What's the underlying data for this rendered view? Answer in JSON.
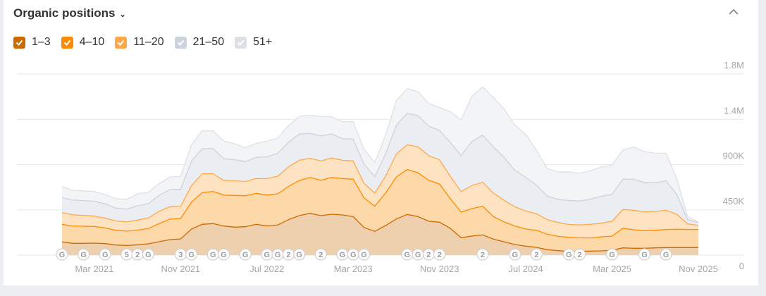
{
  "header": {
    "title": "Organic positions",
    "dropdown_icon": "chevron-down-icon",
    "collapse_icon": "chevron-up-icon"
  },
  "chart_data": {
    "type": "area",
    "stacked": true,
    "title": "Organic positions",
    "x": [
      "2020-12",
      "2021-01",
      "2021-02",
      "2021-03",
      "2021-04",
      "2021-05",
      "2021-06",
      "2021-07",
      "2021-08",
      "2021-09",
      "2021-10",
      "2021-11",
      "2021-12",
      "2022-01",
      "2022-02",
      "2022-03",
      "2022-04",
      "2022-05",
      "2022-06",
      "2022-07",
      "2022-08",
      "2022-09",
      "2022-10",
      "2022-11",
      "2022-12",
      "2023-01",
      "2023-02",
      "2023-03",
      "2023-04",
      "2023-05",
      "2023-06",
      "2023-07",
      "2023-08",
      "2023-09",
      "2023-10",
      "2023-11",
      "2023-12",
      "2024-01",
      "2024-02",
      "2024-03",
      "2024-04",
      "2024-05",
      "2024-06",
      "2024-07",
      "2024-08",
      "2024-09",
      "2024-10",
      "2024-11",
      "2024-12",
      "2025-01",
      "2025-02",
      "2025-03",
      "2025-04",
      "2025-05",
      "2025-06",
      "2025-07",
      "2025-08",
      "2025-09",
      "2025-10",
      "2025-11"
    ],
    "x_tick_labels": [
      "Mar 2021",
      "Nov 2021",
      "Jul 2022",
      "Mar 2023",
      "Nov 2023",
      "Jul 2024",
      "Mar 2025",
      "Nov 2025"
    ],
    "x_tick_dates": [
      "2021-03",
      "2021-11",
      "2022-07",
      "2023-03",
      "2023-11",
      "2024-07",
      "2025-03",
      "2025-11"
    ],
    "y_tick_labels": [
      "0",
      "450K",
      "900K",
      "1.4M",
      "1.8M"
    ],
    "y_tick_values": [
      0,
      450000,
      900000,
      1350000,
      1800000
    ],
    "ylim": [
      0,
      1800000
    ],
    "grid": true,
    "legend_position": "top-left",
    "series": [
      {
        "name": "1–3",
        "color": "#cc6a00",
        "fill": "#efd0ae",
        "checked": true,
        "values": [
          131000,
          117000,
          117000,
          119000,
          114000,
          100000,
          96000,
          103000,
          112000,
          133000,
          154000,
          161000,
          259000,
          306000,
          313000,
          289000,
          278000,
          282000,
          306000,
          289000,
          299000,
          352000,
          392000,
          415000,
          392000,
          406000,
          399000,
          383000,
          275000,
          236000,
          294000,
          359000,
          404000,
          383000,
          336000,
          327000,
          266000,
          173000,
          189000,
          201000,
          159000,
          131000,
          105000,
          89000,
          77000,
          54000,
          44000,
          37000,
          37000,
          40000,
          42000,
          49000,
          72000,
          68000,
          68000,
          72000,
          75000,
          75000,
          75000,
          75000
        ]
      },
      {
        "name": "4–10",
        "color": "#ff8c00",
        "fill": "#fdd8a8",
        "checked": true,
        "values": [
          175000,
          173000,
          170000,
          166000,
          156000,
          147000,
          142000,
          145000,
          152000,
          180000,
          203000,
          203000,
          268000,
          315000,
          320000,
          308000,
          315000,
          308000,
          308000,
          308000,
          310000,
          331000,
          350000,
          357000,
          352000,
          366000,
          362000,
          371000,
          294000,
          250000,
          322000,
          418000,
          446000,
          436000,
          408000,
          380000,
          296000,
          254000,
          273000,
          285000,
          224000,
          198000,
          184000,
          170000,
          170000,
          154000,
          142000,
          140000,
          135000,
          131000,
          140000,
          140000,
          194000,
          184000,
          175000,
          175000,
          180000,
          182000,
          180000,
          180000
        ]
      },
      {
        "name": "11–20",
        "color": "#ffa84a",
        "fill": "#fee3c3",
        "checked": true,
        "values": [
          117000,
          110000,
          107000,
          103000,
          98000,
          93000,
          91000,
          100000,
          105000,
          121000,
          124000,
          121000,
          163000,
          187000,
          175000,
          145000,
          145000,
          142000,
          147000,
          163000,
          175000,
          194000,
          201000,
          191000,
          191000,
          194000,
          182000,
          182000,
          145000,
          131000,
          168000,
          229000,
          247000,
          257000,
          245000,
          240000,
          222000,
          205000,
          229000,
          238000,
          233000,
          215000,
          191000,
          180000,
          163000,
          145000,
          138000,
          128000,
          128000,
          135000,
          135000,
          147000,
          187000,
          194000,
          187000,
          187000,
          191000,
          149000,
          56000,
          40000
        ]
      },
      {
        "name": "21–50",
        "color": "#cdd3dc",
        "fill": "#eaedf1",
        "checked": true,
        "values": [
          147000,
          147000,
          149000,
          147000,
          142000,
          128000,
          128000,
          142000,
          142000,
          159000,
          170000,
          170000,
          245000,
          250000,
          250000,
          217000,
          210000,
          198000,
          210000,
          217000,
          229000,
          245000,
          261000,
          247000,
          250000,
          238000,
          215000,
          217000,
          191000,
          163000,
          222000,
          287000,
          313000,
          310000,
          292000,
          292000,
          338000,
          357000,
          439000,
          469000,
          460000,
          427000,
          362000,
          334000,
          285000,
          233000,
          231000,
          238000,
          238000,
          250000,
          268000,
          268000,
          301000,
          310000,
          289000,
          285000,
          292000,
          198000,
          42000,
          28000
        ]
      },
      {
        "name": "51+",
        "color": "#dde1e7",
        "fill": "#f3f4f6",
        "checked": true,
        "values": [
          110000,
          98000,
          96000,
          98000,
          91000,
          93000,
          98000,
          119000,
          114000,
          117000,
          126000,
          128000,
          163000,
          177000,
          177000,
          175000,
          159000,
          138000,
          140000,
          156000,
          149000,
          163000,
          175000,
          180000,
          194000,
          170000,
          168000,
          173000,
          147000,
          140000,
          187000,
          243000,
          243000,
          238000,
          226000,
          229000,
          303000,
          355000,
          448000,
          478000,
          490000,
          478000,
          450000,
          427000,
          345000,
          275000,
          271000,
          285000,
          275000,
          282000,
          292000,
          292000,
          292000,
          320000,
          310000,
          294000,
          275000,
          156000,
          30000,
          7000
        ]
      }
    ],
    "annotations": [
      {
        "date": "2020-12",
        "label": "G"
      },
      {
        "date": "2021-02",
        "label": "G"
      },
      {
        "date": "2021-04",
        "label": "G"
      },
      {
        "date": "2021-06",
        "label": "5"
      },
      {
        "date": "2021-07",
        "label": "2"
      },
      {
        "date": "2021-08",
        "label": "G"
      },
      {
        "date": "2021-11",
        "label": "3"
      },
      {
        "date": "2021-12",
        "label": "G"
      },
      {
        "date": "2022-02",
        "label": "G"
      },
      {
        "date": "2022-03",
        "label": "G"
      },
      {
        "date": "2022-05",
        "label": "G"
      },
      {
        "date": "2022-07",
        "label": "G"
      },
      {
        "date": "2022-08",
        "label": "G"
      },
      {
        "date": "2022-09",
        "label": "2"
      },
      {
        "date": "2022-10",
        "label": "G"
      },
      {
        "date": "2022-12",
        "label": "2"
      },
      {
        "date": "2023-02",
        "label": "G"
      },
      {
        "date": "2023-03",
        "label": "G"
      },
      {
        "date": "2023-04",
        "label": "G"
      },
      {
        "date": "2023-08",
        "label": "G"
      },
      {
        "date": "2023-09",
        "label": "G"
      },
      {
        "date": "2023-10",
        "label": "2"
      },
      {
        "date": "2023-11",
        "label": "2"
      },
      {
        "date": "2024-03",
        "label": "2"
      },
      {
        "date": "2024-06",
        "label": "G"
      },
      {
        "date": "2024-08",
        "label": "2"
      },
      {
        "date": "2024-11",
        "label": "G"
      },
      {
        "date": "2024-12",
        "label": "2"
      },
      {
        "date": "2025-03",
        "label": "G"
      },
      {
        "date": "2025-06",
        "label": "G"
      },
      {
        "date": "2025-08",
        "label": "G"
      }
    ]
  }
}
